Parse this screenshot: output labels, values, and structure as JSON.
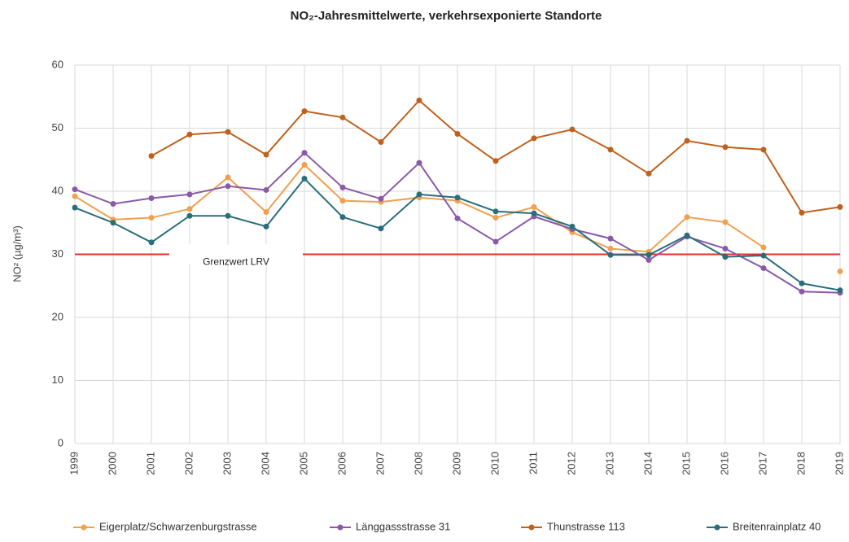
{
  "chart_data": {
    "type": "line",
    "title": "NO₂-Jahresmittelwerte, verkehrsexponierte Standorte",
    "y_label": "NO² (µg/m³)",
    "x": [
      1999,
      2000,
      2001,
      2002,
      2003,
      2004,
      2005,
      2006,
      2007,
      2008,
      2009,
      2010,
      2011,
      2012,
      2013,
      2014,
      2015,
      2016,
      2017,
      2018,
      2019
    ],
    "xlim": [
      1999,
      2019
    ],
    "ylim": [
      0,
      60
    ],
    "yticks": [
      0,
      10,
      20,
      30,
      40,
      50,
      60
    ],
    "grid": true,
    "legend": "bottom",
    "limit_line": {
      "value": 30,
      "label": "Grenzwert LRV",
      "color": "#e8302c"
    },
    "series": [
      {
        "name": "Eigerplatz/Schwarzenburgstrasse",
        "color": "#f0a04e",
        "values": [
          39.2,
          35.5,
          35.8,
          37.2,
          42.2,
          36.7,
          44.2,
          38.5,
          38.3,
          39.0,
          38.5,
          35.8,
          37.5,
          33.5,
          30.9,
          30.4,
          35.9,
          35.1,
          31.1,
          null,
          27.3
        ]
      },
      {
        "name": "Länggassstrasse 31",
        "color": "#8a5aa8",
        "values": [
          40.3,
          38.0,
          38.9,
          39.5,
          40.8,
          40.2,
          46.1,
          40.6,
          38.8,
          44.5,
          35.7,
          32.0,
          36.0,
          34.0,
          32.5,
          29.1,
          32.8,
          30.9,
          27.8,
          24.1,
          23.9
        ]
      },
      {
        "name": "Thunstrasse 113",
        "color": "#c0601c",
        "values": [
          null,
          null,
          45.6,
          49.0,
          49.4,
          45.8,
          52.7,
          51.7,
          47.8,
          54.4,
          49.1,
          44.8,
          48.4,
          49.8,
          46.6,
          42.8,
          48.0,
          47.0,
          46.6,
          36.6,
          37.5
        ]
      },
      {
        "name": "Breitenrainplatz 40",
        "color": "#2a6e7a",
        "values": [
          37.4,
          35.0,
          31.9,
          36.1,
          36.1,
          34.4,
          42.0,
          35.9,
          34.1,
          39.5,
          39.0,
          36.8,
          36.5,
          34.4,
          29.9,
          29.9,
          33.0,
          29.6,
          29.8,
          25.4,
          24.3
        ]
      }
    ]
  }
}
